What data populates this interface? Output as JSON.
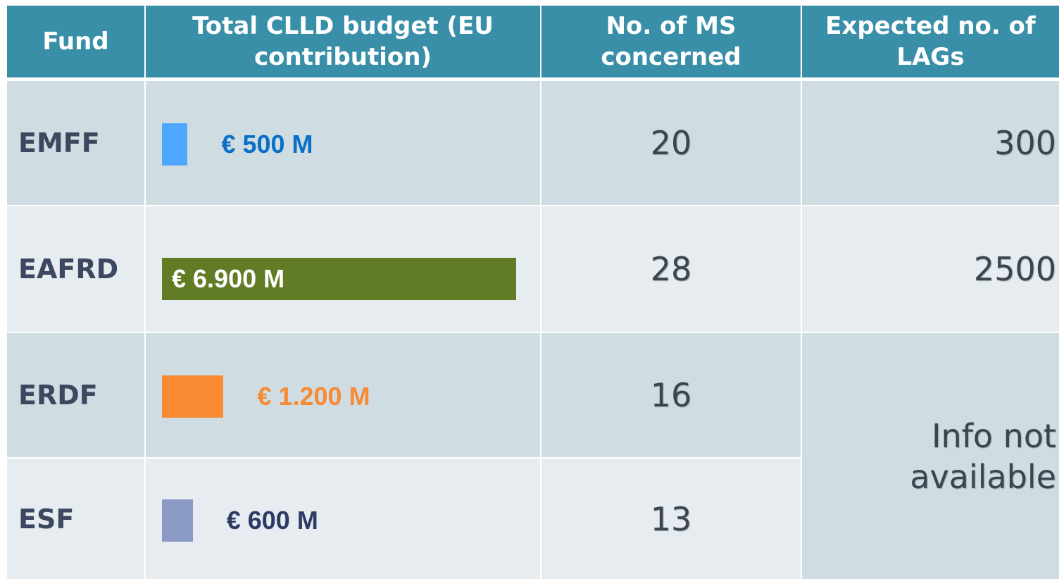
{
  "table": {
    "headers": [
      "Fund",
      "Total CLLD budget (EU contribution)",
      "No. of MS concerned",
      "Expected no. of LAGs"
    ],
    "rows": [
      {
        "fund": "EMFF",
        "budget": 500,
        "budget_label": "€ 500 M",
        "color": "#4da6ff",
        "label_color": "#0a6fc8",
        "ms": "20",
        "lags": "300"
      },
      {
        "fund": "EAFRD",
        "budget": 6900,
        "budget_label": "€ 6.900 M",
        "color": "#627c26",
        "label_color": "#ffffff",
        "ms": "28",
        "lags": "2500"
      },
      {
        "fund": "ERDF",
        "budget": 1200,
        "budget_label": "€ 1.200 M",
        "color": "#f78a33",
        "label_color": "#f78a33",
        "ms": "16"
      },
      {
        "fund": "ESF",
        "budget": 600,
        "budget_label": "€ 600 M",
        "color": "#8a9ac4",
        "label_color": "#2e3a66",
        "ms": "13"
      }
    ],
    "merged_lags": "Info not available"
  }
}
